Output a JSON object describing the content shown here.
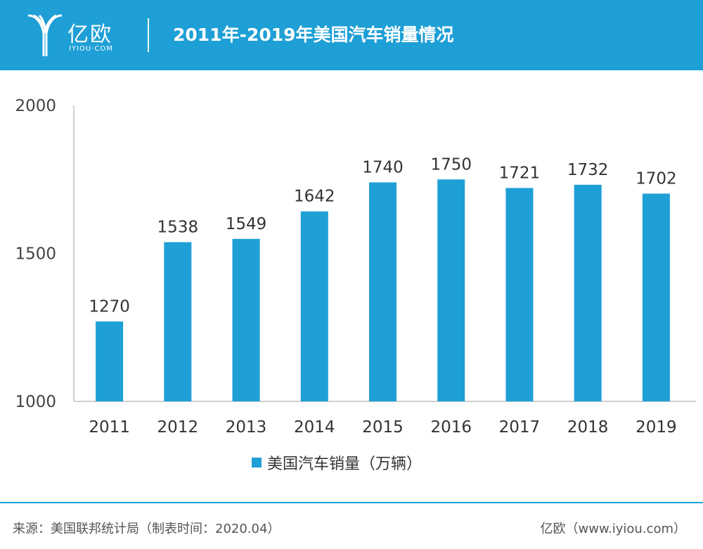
{
  "header": {
    "logo_text": "亿欧",
    "logo_sub": "IYIOU·COM",
    "title": "2011年-2019年美国汽车销量情况",
    "background": "#1e9fd6"
  },
  "chart_data": {
    "type": "bar",
    "categories": [
      "2011",
      "2012",
      "2013",
      "2014",
      "2015",
      "2016",
      "2017",
      "2018",
      "2019"
    ],
    "series": [
      {
        "name": "美国汽车销量（万辆）",
        "values": [
          1270,
          1538,
          1549,
          1642,
          1740,
          1750,
          1721,
          1732,
          1702
        ],
        "color": "#1e9fd6"
      }
    ],
    "ylim": [
      1000,
      2000
    ],
    "yticks": [
      1000,
      1500,
      2000
    ],
    "grid": false,
    "legend": "bottom-center",
    "data_labels": true
  },
  "legend_label": "美国汽车销量（万辆）",
  "footer": {
    "source": "来源：美国联邦统计局（制表时间：2020.04）",
    "brand": "亿欧（www.iyiou.com）"
  }
}
